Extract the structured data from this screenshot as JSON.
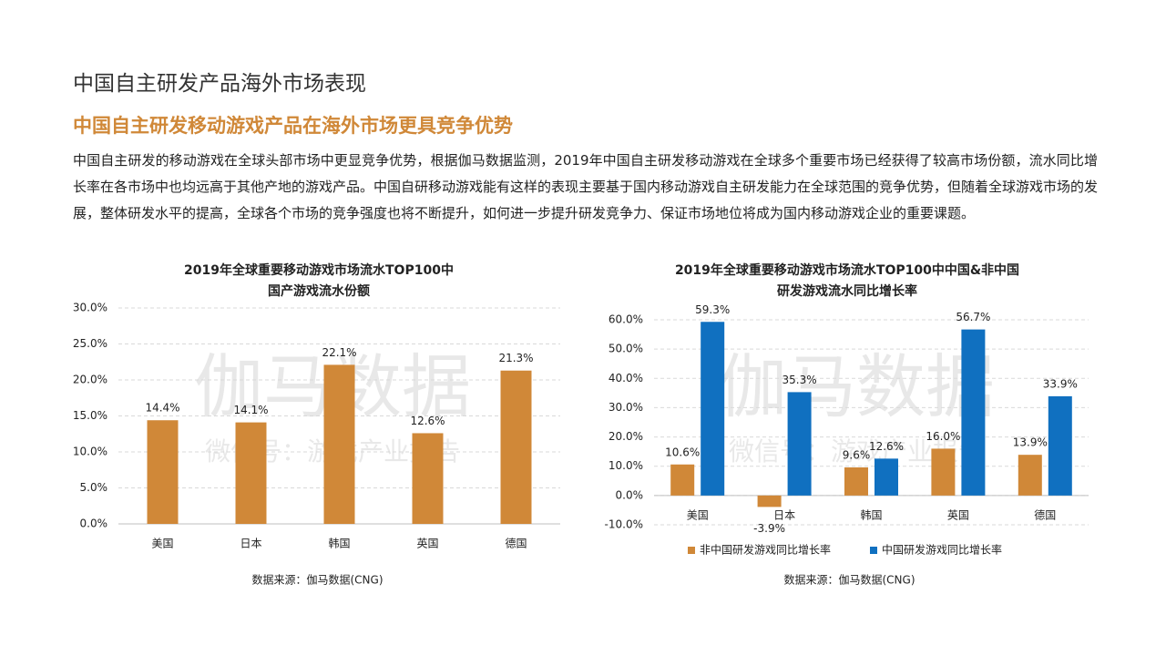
{
  "header": {
    "section": "中国自主研发产品海外市场表现",
    "heading": "中国自主研发移动游戏产品在海外市场更具竞争优势",
    "paragraph": "中国自主研发的移动游戏在全球头部市场中更显竞争优势，根据伽马数据监测，2019年中国自主研发移动游戏在全球多个重要市场已经获得了较高市场份额，流水同比增长率在各市场中也均远高于其他产地的游戏产品。中国自研移动游戏能有这样的表现主要基于国内移动游戏自主研发能力在全球范围的竞争优势，但随着全球游戏市场的发展，整体研发水平的提高，全球各个市场的竞争强度也将不断提升，如何进一步提升研发竞争力、保证市场地位将成为国内移动游戏企业的重要课题。"
  },
  "watermark": {
    "main": "伽马数据",
    "sub": "微信号：游戏产业报告"
  },
  "chart_data": [
    {
      "type": "bar",
      "title": [
        "2019年全球重要移动游戏市场流水TOP100中",
        "国产游戏流水份额"
      ],
      "categories": [
        "美国",
        "日本",
        "韩国",
        "英国",
        "德国"
      ],
      "values": [
        14.4,
        14.1,
        22.1,
        12.6,
        21.3
      ],
      "value_labels": [
        "14.4%",
        "14.1%",
        "22.1%",
        "12.6%",
        "21.3%"
      ],
      "color": "#d08838",
      "ylim": [
        0,
        30
      ],
      "yticks": [
        {
          "value": 0,
          "label": "0.0%"
        },
        {
          "value": 5,
          "label": "5.0%"
        },
        {
          "value": 10,
          "label": "10.0%"
        },
        {
          "value": 15,
          "label": "15.0%"
        },
        {
          "value": 20,
          "label": "20.0%"
        },
        {
          "value": 25,
          "label": "25.0%"
        },
        {
          "value": 30,
          "label": "30.0%"
        }
      ],
      "grid": true,
      "source": "数据来源：伽马数据(CNG)"
    },
    {
      "type": "grouped-bar",
      "title": [
        "2019年全球重要移动游戏市场流水TOP100中中国&非中国",
        "研发游戏流水同比增长率"
      ],
      "categories": [
        "美国",
        "日本",
        "韩国",
        "英国",
        "德国"
      ],
      "series": [
        {
          "name": "非中国研发游戏同比增长率",
          "color": "#d08838",
          "values": [
            10.6,
            -3.9,
            9.6,
            16.0,
            13.9
          ],
          "value_labels": [
            "10.6%",
            "-3.9%",
            "9.6%",
            "16.0%",
            "13.9%"
          ]
        },
        {
          "name": "中国研发游戏同比增长率",
          "color": "#1070c0",
          "values": [
            59.3,
            35.3,
            12.6,
            56.7,
            33.9
          ],
          "value_labels": [
            "59.3%",
            "35.3%",
            "12.6%",
            "56.7%",
            "33.9%"
          ]
        }
      ],
      "ylim": [
        -10,
        60
      ],
      "yticks": [
        {
          "value": -10,
          "label": "-10.0%"
        },
        {
          "value": 0,
          "label": "0.0%"
        },
        {
          "value": 10,
          "label": "10.0%"
        },
        {
          "value": 20,
          "label": "20.0%"
        },
        {
          "value": 30,
          "label": "30.0%"
        },
        {
          "value": 40,
          "label": "40.0%"
        },
        {
          "value": 50,
          "label": "50.0%"
        },
        {
          "value": 60,
          "label": "60.0%"
        }
      ],
      "grid": true,
      "legend": "bottom",
      "source": "数据来源：伽马数据(CNG)"
    }
  ]
}
